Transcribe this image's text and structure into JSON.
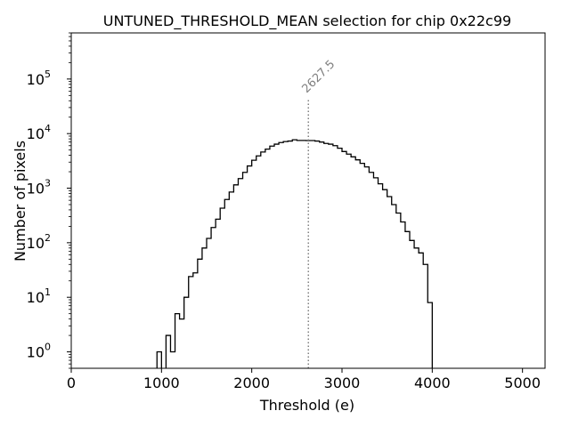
{
  "chart_data": {
    "type": "histogram",
    "title": "UNTUNED_THRESHOLD_MEAN selection for chip 0x22c99",
    "xlabel": "Threshold (e)",
    "ylabel": "Number of pixels",
    "xlim": [
      0,
      5250
    ],
    "ylim": [
      0.5,
      700000
    ],
    "yscale": "log",
    "x_ticks": [
      0,
      1000,
      2000,
      3000,
      4000,
      5000
    ],
    "y_ticks": [
      {
        "value": 1,
        "base": "10",
        "exp": "0"
      },
      {
        "value": 10,
        "base": "10",
        "exp": "1"
      },
      {
        "value": 100,
        "base": "10",
        "exp": "2"
      },
      {
        "value": 1000,
        "base": "10",
        "exp": "3"
      },
      {
        "value": 10000,
        "base": "10",
        "exp": "4"
      },
      {
        "value": 100000,
        "base": "10",
        "exp": "5"
      }
    ],
    "bin_width": 50,
    "bins_start": [
      950,
      1000,
      1050,
      1100,
      1150,
      1200,
      1250,
      1300,
      1350,
      1400,
      1450,
      1500,
      1550,
      1600,
      1650,
      1700,
      1750,
      1800,
      1850,
      1900,
      1950,
      2000,
      2050,
      2100,
      2150,
      2200,
      2250,
      2300,
      2350,
      2400,
      2450,
      2500,
      2550,
      2600,
      2650,
      2700,
      2750,
      2800,
      2850,
      2900,
      2950,
      3000,
      3050,
      3100,
      3150,
      3200,
      3250,
      3300,
      3350,
      3400,
      3450,
      3500,
      3550,
      3600,
      3650,
      3700,
      3750,
      3800,
      3850,
      3900,
      3950,
      4000
    ],
    "counts": [
      1,
      0,
      2,
      1,
      5,
      4,
      10,
      24,
      28,
      50,
      80,
      120,
      190,
      270,
      430,
      620,
      850,
      1150,
      1500,
      1950,
      2550,
      3250,
      3900,
      4600,
      5200,
      5900,
      6400,
      6850,
      7150,
      7300,
      7700,
      7500,
      7500,
      7450,
      7450,
      7300,
      7000,
      6600,
      6400,
      6000,
      5400,
      4700,
      4200,
      3750,
      3300,
      2850,
      2450,
      1950,
      1550,
      1200,
      940,
      700,
      500,
      350,
      240,
      160,
      110,
      80,
      65,
      40,
      8,
      0
    ],
    "marker": {
      "x": 2627.5,
      "label": "2627.5",
      "style": "dotted",
      "color": "#808080"
    },
    "grid": false,
    "line_color": "#000000"
  }
}
